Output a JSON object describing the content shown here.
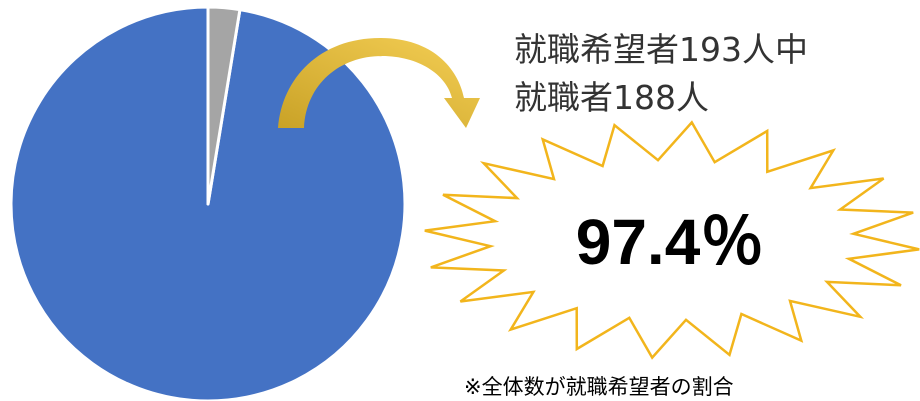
{
  "chart_data": {
    "type": "pie",
    "slices": [
      {
        "label": "",
        "value": 188,
        "color": "#4472C4"
      },
      {
        "label": "",
        "value": 5,
        "color": "#A5A5A5"
      }
    ],
    "start_angle_deg": 0,
    "direction": "counterclockwise-from-top"
  },
  "caption": {
    "line1": "就職希望者193人中",
    "line2": "就職者188人"
  },
  "highlight": {
    "value": "97.4％"
  },
  "footnote": "※全体数が就職希望者の割合",
  "colors": {
    "arrow_start": "#C9A227",
    "arrow_end": "#F2C94C",
    "burst_stroke": "#F2B51C"
  }
}
